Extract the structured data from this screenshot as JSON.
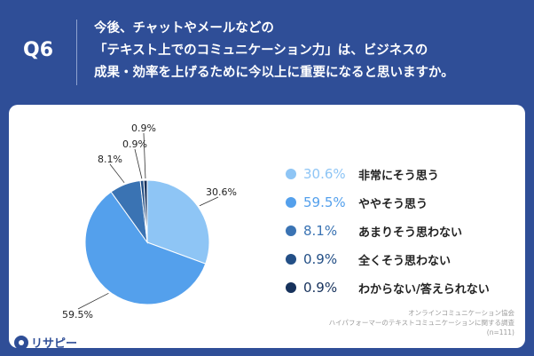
{
  "header": {
    "question_number": "Q6",
    "question_lines": [
      "今後、チャットやメールなどの",
      "「テキスト上でのコミュニケーション力」は、ビジネスの",
      "成果・効率を上げるために今以上に重要になると思いますか。"
    ]
  },
  "chart_data": {
    "type": "pie",
    "start_angle_deg": 0,
    "direction": "clockwise",
    "slices": [
      {
        "label": "非常にそう思う",
        "value": 30.6,
        "display": "30.6%",
        "color": "#8ec5f5"
      },
      {
        "label": "ややそう思う",
        "value": 59.5,
        "display": "59.5%",
        "color": "#54a0ec"
      },
      {
        "label": "あまりそう思わない",
        "value": 8.1,
        "display": "8.1%",
        "color": "#3a73b3"
      },
      {
        "label": "全くそう思わない",
        "value": 0.9,
        "display": "0.9%",
        "color": "#234f86"
      },
      {
        "label": "わからない/答えられない",
        "value": 0.9,
        "display": "0.9%",
        "color": "#17325c"
      }
    ]
  },
  "source": {
    "line1": "オンラインコミュニケーション協会",
    "line2": "ハイパフォーマーのテキストコミュニケーションに関する調査",
    "line3": "(n=111)"
  },
  "logo": {
    "text": "リサピー",
    "icon": "magnifier-pin-icon",
    "color": "#2f4e97"
  }
}
